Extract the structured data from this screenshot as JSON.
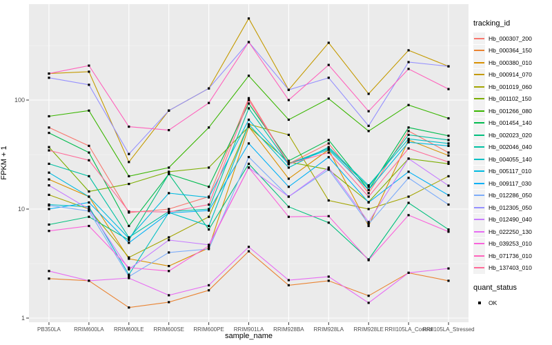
{
  "chart_data": {
    "type": "line",
    "title": "",
    "xlabel": "sample_name",
    "ylabel": "FPKM + 1",
    "x_categories": [
      "PB350LA",
      "RRIM600LA",
      "RRIM600LE",
      "RRIM600SE",
      "RRIM600PE",
      "RRIM901LA",
      "RRIM928BA",
      "RRIM928LA",
      "RRIM928LE",
      "RRII105LA_Control",
      "RRII105LA_Stressed"
    ],
    "y_scale": "log10",
    "y_ticks": [
      1,
      10,
      100
    ],
    "y_minor_ticks": [
      3.162,
      31.62,
      316.2
    ],
    "ylim": [
      0.92,
      760
    ],
    "grid": true,
    "legend_position": "right",
    "panel_bg": "#EBEBEB",
    "gridline_color": "#FFFFFF",
    "tick_label_color": "#4D4D4D",
    "marker": {
      "shape": "square",
      "color": "#000000",
      "size": 3.2
    },
    "legend_title": "tracking_id",
    "series": [
      {
        "name": "Hb_000307_200",
        "color": "#F8766D",
        "values": [
          56,
          38,
          9.3,
          10,
          13,
          104,
          26,
          40,
          14,
          52,
          33
        ]
      },
      {
        "name": "Hb_000364_150",
        "color": "#EA8331",
        "values": [
          2.3,
          2.2,
          1.25,
          1.4,
          1.8,
          4.1,
          2.0,
          2.2,
          1.6,
          2.6,
          2.2
        ]
      },
      {
        "name": "Hb_000380_010",
        "color": "#D89000",
        "values": [
          18.7,
          13,
          3.5,
          3.0,
          4.4,
          57,
          19,
          35,
          7,
          43,
          31
        ]
      },
      {
        "name": "Hb_000914_070",
        "color": "#C49A00",
        "values": [
          175,
          182,
          27,
          80,
          128,
          560,
          124,
          335,
          114,
          286,
          204
        ]
      },
      {
        "name": "Hb_001019_060",
        "color": "#A3A500",
        "values": [
          13.5,
          10,
          3.6,
          5.5,
          8.5,
          60,
          48,
          12,
          10,
          13,
          20
        ]
      },
      {
        "name": "Hb_001102_150",
        "color": "#7CAE00",
        "values": [
          37,
          14.5,
          17,
          22,
          24,
          57,
          27,
          23,
          11.6,
          29,
          26
        ]
      },
      {
        "name": "Hb_001266_080",
        "color": "#39B600",
        "values": [
          71,
          80,
          20,
          24,
          56,
          167,
          66,
          103,
          52,
          90,
          68
        ]
      },
      {
        "name": "Hb_001454_140",
        "color": "#00BB4E",
        "values": [
          50,
          33,
          7,
          21,
          16,
          93,
          27.7,
          43,
          15,
          56,
          47
        ]
      },
      {
        "name": "Hb_002023_020",
        "color": "#00BF7D",
        "values": [
          7.2,
          8.5,
          5.2,
          21,
          6.5,
          26,
          10.5,
          7.5,
          3.45,
          11.4,
          6.5
        ]
      },
      {
        "name": "Hb_002046_040",
        "color": "#00C1A3",
        "values": [
          26,
          20,
          5.5,
          9.5,
          10,
          84,
          26,
          36,
          16,
          48,
          43
        ]
      },
      {
        "name": "Hb_004055_140",
        "color": "#00BFC4",
        "values": [
          11,
          10.5,
          2.5,
          9.3,
          7,
          60,
          24,
          37,
          16.5,
          44,
          40
        ]
      },
      {
        "name": "Hb_005117_010",
        "color": "#00BAE0",
        "values": [
          21.6,
          13,
          5.4,
          14,
          12.8,
          66,
          25.8,
          35,
          15,
          41,
          38
        ]
      },
      {
        "name": "Hb_009117_030",
        "color": "#00B0F6",
        "values": [
          10,
          11.5,
          4.9,
          9.2,
          9.7,
          40,
          16,
          29.9,
          11.5,
          22,
          13.4
        ]
      },
      {
        "name": "Hb_012286_050",
        "color": "#7CACFA",
        "values": [
          10.8,
          9.6,
          2.4,
          4.0,
          4.3,
          30,
          13,
          23,
          7.3,
          19.3,
          11
        ]
      },
      {
        "name": "Hb_012305_050",
        "color": "#9590FF",
        "values": [
          160,
          138,
          32,
          80,
          128,
          340,
          124,
          160,
          58,
          223,
          204
        ]
      },
      {
        "name": "Hb_012490_040",
        "color": "#C77CFF",
        "values": [
          16.5,
          10,
          2.8,
          5.2,
          4.7,
          24,
          13,
          24,
          7.6,
          29,
          16.4
        ]
      },
      {
        "name": "Hb_022250_130",
        "color": "#E76BF3",
        "values": [
          2.7,
          2.2,
          2.33,
          1.62,
          2.0,
          4.5,
          2.23,
          2.4,
          1.38,
          2.6,
          2.85
        ]
      },
      {
        "name": "Hb_039253_010",
        "color": "#FA62DB",
        "values": [
          6.3,
          7.0,
          2.9,
          2.7,
          4.6,
          24,
          8.5,
          8.6,
          3.4,
          8.8,
          6.2
        ]
      },
      {
        "name": "Hb_071736_010",
        "color": "#FF62BC",
        "values": [
          175,
          207,
          57,
          53,
          94,
          340,
          100,
          210,
          79,
          193,
          126
        ]
      },
      {
        "name": "Hb_137403_010",
        "color": "#FF6A98",
        "values": [
          34.5,
          28,
          9.5,
          9.4,
          11,
          100,
          26,
          33,
          13,
          36,
          27
        ]
      }
    ],
    "quant_status": {
      "title": "quant_status",
      "items": [
        {
          "label": "OK",
          "marker": "black-square"
        }
      ]
    }
  }
}
